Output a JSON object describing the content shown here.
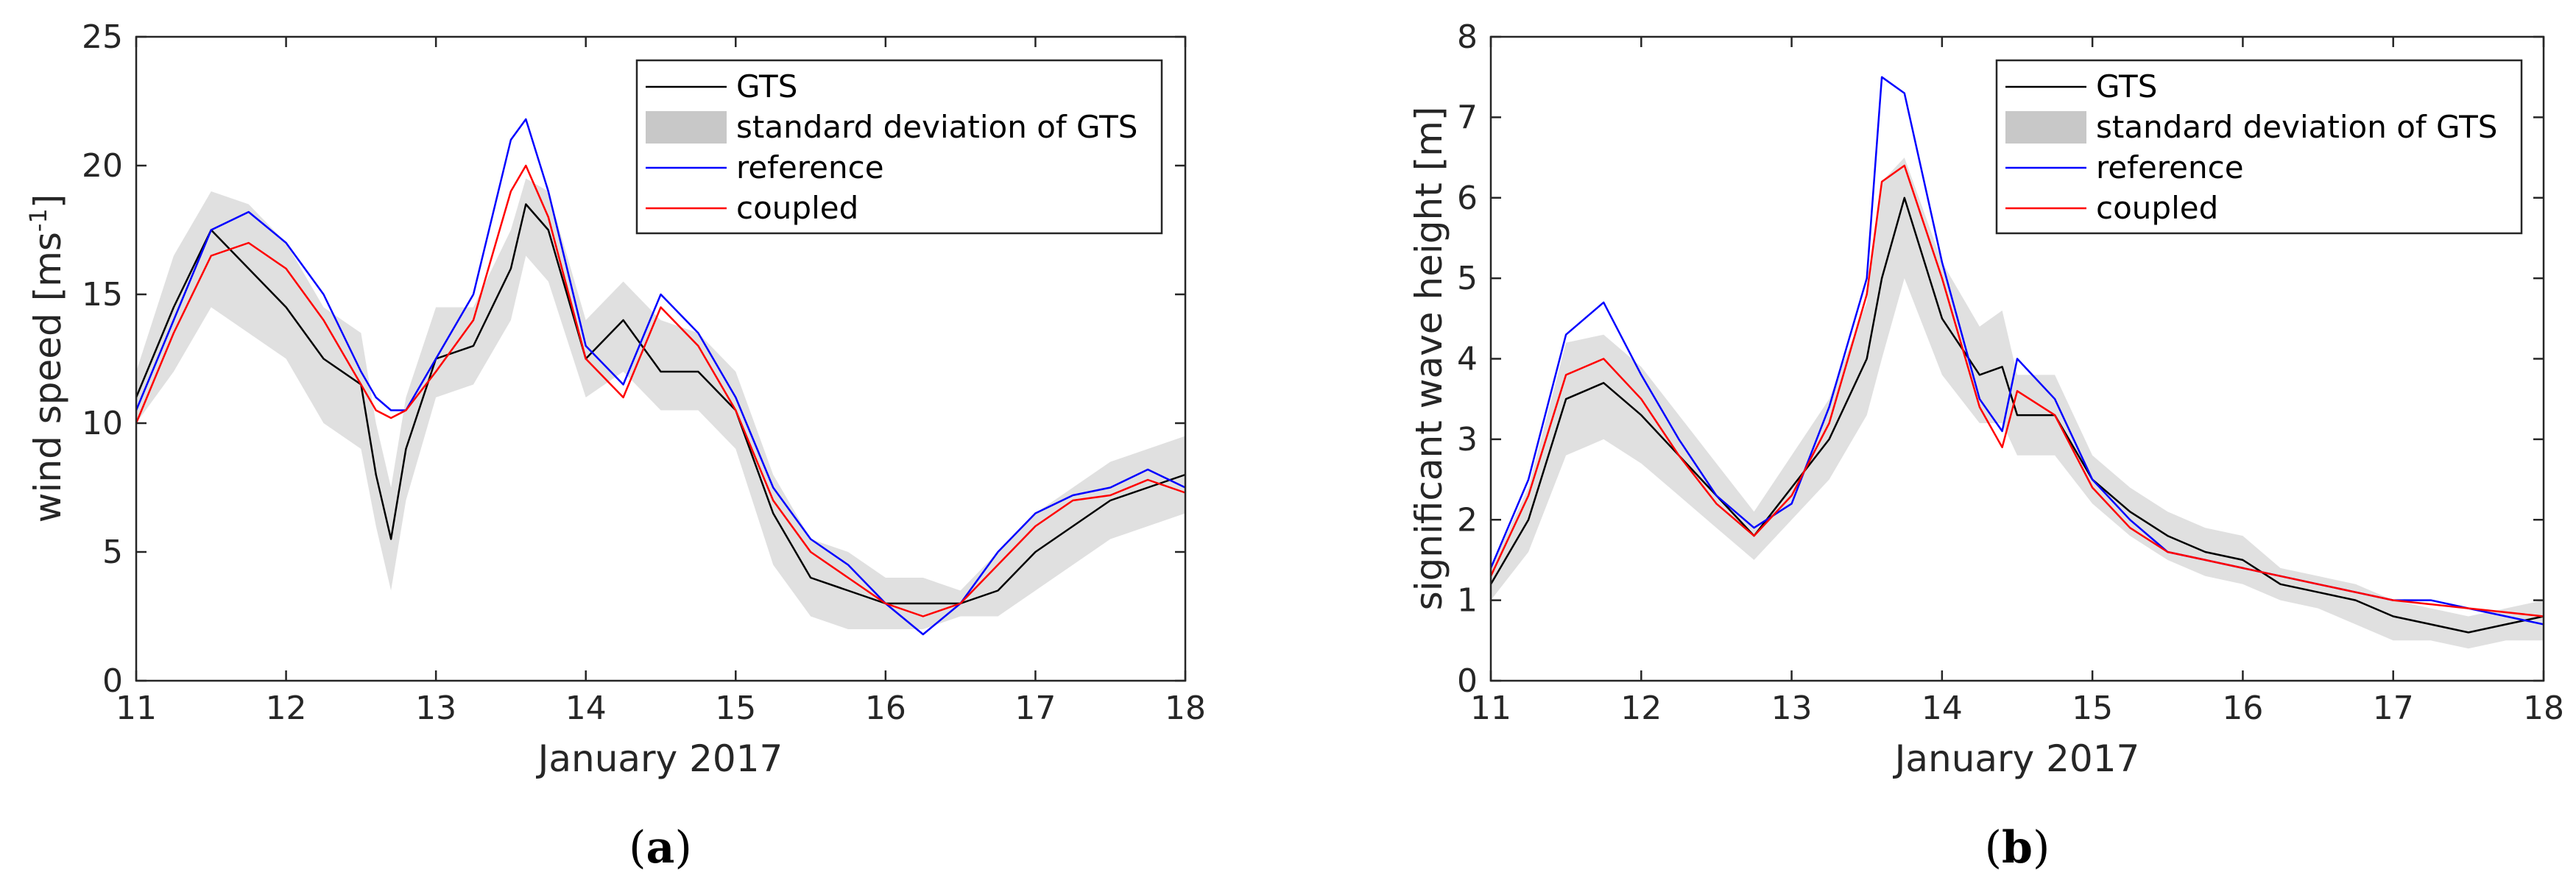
{
  "chart_data": [
    {
      "id": "a",
      "type": "line",
      "panel_label": "a",
      "xlabel": "January 2017",
      "ylabel": "wind speed [ms",
      "ylabel_sup": "-1",
      "ylabel_end": "]",
      "xlim": [
        11,
        18
      ],
      "ylim": [
        0,
        25
      ],
      "xticks": [
        11,
        12,
        13,
        14,
        15,
        16,
        17,
        18
      ],
      "yticks": [
        0,
        5,
        10,
        15,
        20,
        25
      ],
      "legend": [
        "GTS",
        "standard deviation of GTS",
        "reference",
        "coupled"
      ],
      "legend_position": "top-right",
      "x": [
        11.0,
        11.25,
        11.5,
        11.75,
        12.0,
        12.25,
        12.5,
        12.6,
        12.7,
        12.8,
        13.0,
        13.25,
        13.5,
        13.6,
        13.75,
        14.0,
        14.25,
        14.5,
        14.75,
        15.0,
        15.25,
        15.5,
        15.75,
        16.0,
        16.25,
        16.5,
        16.75,
        17.0,
        17.25,
        17.5,
        17.75,
        18.0
      ],
      "series": [
        {
          "name": "GTS",
          "color": "#000000",
          "values": [
            11.0,
            14.5,
            17.5,
            16.0,
            14.5,
            12.5,
            11.5,
            8.0,
            5.5,
            9.0,
            12.5,
            13.0,
            16.0,
            18.5,
            17.5,
            12.5,
            14.0,
            12.0,
            12.0,
            10.5,
            6.5,
            4.0,
            3.5,
            3.0,
            3.0,
            3.0,
            3.5,
            5.0,
            6.0,
            7.0,
            7.5,
            8.0
          ]
        },
        {
          "name": "reference",
          "color": "#0000ff",
          "values": [
            10.5,
            14.0,
            17.5,
            18.2,
            17.0,
            15.0,
            12.0,
            11.0,
            10.5,
            10.5,
            12.5,
            15.0,
            21.0,
            21.8,
            19.0,
            13.0,
            11.5,
            15.0,
            13.5,
            11.0,
            7.5,
            5.5,
            4.5,
            3.0,
            1.8,
            3.0,
            5.0,
            6.5,
            7.2,
            7.5,
            8.2,
            7.5
          ]
        },
        {
          "name": "coupled",
          "color": "#ff0000",
          "values": [
            10.0,
            13.5,
            16.5,
            17.0,
            16.0,
            14.0,
            11.5,
            10.5,
            10.2,
            10.5,
            12.0,
            14.0,
            19.0,
            20.0,
            18.0,
            12.5,
            11.0,
            14.5,
            13.0,
            10.5,
            7.0,
            5.0,
            4.0,
            3.0,
            2.5,
            3.0,
            4.5,
            6.0,
            7.0,
            7.2,
            7.8,
            7.3
          ]
        }
      ],
      "band": {
        "name": "standard deviation of GTS",
        "lower": [
          10.0,
          12.0,
          14.5,
          13.5,
          12.5,
          10.0,
          9.0,
          6.0,
          3.5,
          7.0,
          11.0,
          11.5,
          14.0,
          16.5,
          15.5,
          11.0,
          12.0,
          10.5,
          10.5,
          9.0,
          4.5,
          2.5,
          2.0,
          2.0,
          2.0,
          2.5,
          2.5,
          3.5,
          4.5,
          5.5,
          6.0,
          6.5
        ],
        "upper": [
          12.0,
          16.5,
          19.0,
          18.5,
          17.0,
          14.5,
          13.5,
          10.0,
          7.5,
          11.0,
          14.5,
          14.5,
          17.5,
          19.5,
          19.0,
          14.0,
          15.5,
          14.0,
          13.5,
          12.0,
          8.0,
          5.5,
          5.0,
          4.0,
          4.0,
          3.5,
          5.0,
          6.5,
          7.5,
          8.5,
          9.0,
          9.5
        ]
      }
    },
    {
      "id": "b",
      "type": "line",
      "panel_label": "b",
      "xlabel": "January 2017",
      "ylabel": "significant wave height [m]",
      "xlim": [
        11,
        18
      ],
      "ylim": [
        0,
        8
      ],
      "xticks": [
        11,
        12,
        13,
        14,
        15,
        16,
        17,
        18
      ],
      "yticks": [
        0,
        1,
        2,
        3,
        4,
        5,
        6,
        7,
        8
      ],
      "legend": [
        "GTS",
        "standard deviation of GTS",
        "reference",
        "coupled"
      ],
      "legend_position": "top-right",
      "x": [
        11.0,
        11.25,
        11.5,
        11.75,
        12.0,
        12.25,
        12.5,
        12.75,
        13.0,
        13.25,
        13.5,
        13.6,
        13.75,
        14.0,
        14.25,
        14.4,
        14.5,
        14.75,
        15.0,
        15.25,
        15.5,
        15.75,
        16.0,
        16.25,
        16.5,
        16.75,
        17.0,
        17.25,
        17.5,
        17.75,
        18.0
      ],
      "series": [
        {
          "name": "GTS",
          "color": "#000000",
          "values": [
            1.2,
            2.0,
            3.5,
            3.7,
            3.3,
            2.8,
            2.3,
            1.8,
            2.4,
            3.0,
            4.0,
            5.0,
            6.0,
            4.5,
            3.8,
            3.9,
            3.3,
            3.3,
            2.5,
            2.1,
            1.8,
            1.6,
            1.5,
            1.2,
            1.1,
            1.0,
            0.8,
            0.7,
            0.6,
            0.7,
            0.8
          ]
        },
        {
          "name": "reference",
          "color": "#0000ff",
          "values": [
            1.4,
            2.5,
            4.3,
            4.7,
            3.8,
            3.0,
            2.3,
            1.9,
            2.2,
            3.4,
            5.0,
            7.5,
            7.3,
            5.2,
            3.5,
            3.1,
            4.0,
            3.5,
            2.5,
            2.0,
            1.6,
            1.5,
            1.4,
            1.3,
            1.2,
            1.1,
            1.0,
            1.0,
            0.9,
            0.8,
            0.7
          ]
        },
        {
          "name": "coupled",
          "color": "#ff0000",
          "values": [
            1.3,
            2.3,
            3.8,
            4.0,
            3.5,
            2.8,
            2.2,
            1.8,
            2.3,
            3.2,
            4.8,
            6.2,
            6.4,
            5.0,
            3.4,
            2.9,
            3.6,
            3.3,
            2.4,
            1.9,
            1.6,
            1.5,
            1.4,
            1.3,
            1.2,
            1.1,
            1.0,
            0.95,
            0.9,
            0.85,
            0.8
          ]
        }
      ],
      "band": {
        "name": "standard deviation of GTS",
        "lower": [
          1.0,
          1.6,
          2.8,
          3.0,
          2.7,
          2.3,
          1.9,
          1.5,
          2.0,
          2.5,
          3.3,
          4.0,
          5.0,
          3.8,
          3.2,
          3.2,
          2.8,
          2.8,
          2.2,
          1.8,
          1.5,
          1.3,
          1.2,
          1.0,
          0.9,
          0.7,
          0.5,
          0.5,
          0.4,
          0.5,
          0.5
        ]
      },
      "band_upper": [
        1.4,
        2.4,
        4.2,
        4.3,
        3.9,
        3.3,
        2.7,
        2.1,
        2.8,
        3.5,
        4.7,
        6.2,
        6.5,
        5.2,
        4.4,
        4.6,
        3.8,
        3.8,
        2.8,
        2.4,
        2.1,
        1.9,
        1.8,
        1.4,
        1.3,
        1.2,
        1.0,
        0.9,
        0.8,
        0.9,
        1.0
      ]
    }
  ]
}
